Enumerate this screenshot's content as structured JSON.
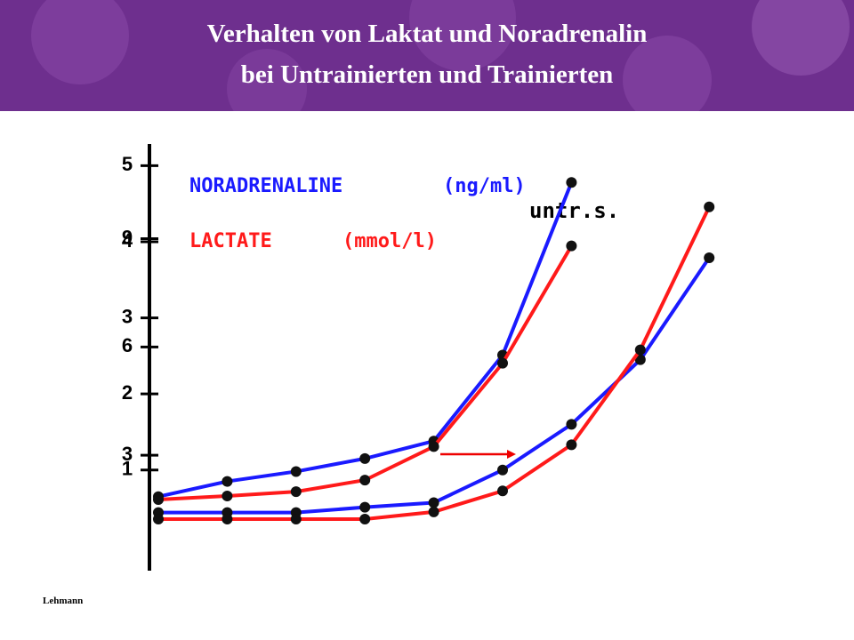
{
  "header": {
    "title_line1": "Verhalten von Laktat und Noradrenalin",
    "title_line2": "bei Untrainierten und Trainierten"
  },
  "footer": {
    "credit": "Lehmann"
  },
  "chart_data": {
    "type": "line",
    "categories": [
      null,
      null,
      null,
      null,
      null,
      null,
      null,
      null,
      null
    ],
    "ylim": [
      -0.3,
      5.25
    ],
    "yticks": [
      1,
      2,
      3,
      4,
      5
    ],
    "y2lim": [
      -0.15,
      11.55
    ],
    "y2ticks": [
      3,
      6,
      9
    ],
    "legend": [
      {
        "label": "NORADRENALINE",
        "unit": "(ng/ml)",
        "color": "#1a1aff"
      },
      {
        "label": "LACTATE",
        "unit": "(mmol/l)",
        "color": "#ff1a1a"
      }
    ],
    "annotation": "untr.s.",
    "series": [
      {
        "color": "#1a1aff",
        "axis": "y",
        "values": [
          0.65,
          0.85,
          0.98,
          1.15,
          1.38,
          2.51,
          4.78,
          null,
          null
        ]
      },
      {
        "color": "#ff1a1a",
        "axis": "y2",
        "values": [
          1.77,
          1.87,
          1.99,
          2.31,
          3.24,
          5.55,
          8.8,
          null,
          null
        ]
      },
      {
        "color": "#1a1aff",
        "axis": "y",
        "values": [
          0.44,
          0.44,
          0.44,
          0.51,
          0.57,
          1.0,
          1.6,
          2.45,
          3.79
        ]
      },
      {
        "color": "#ff1a1a",
        "axis": "y2",
        "values": [
          1.23,
          1.23,
          1.23,
          1.23,
          1.43,
          2.01,
          3.29,
          5.92,
          9.88
        ]
      }
    ]
  }
}
